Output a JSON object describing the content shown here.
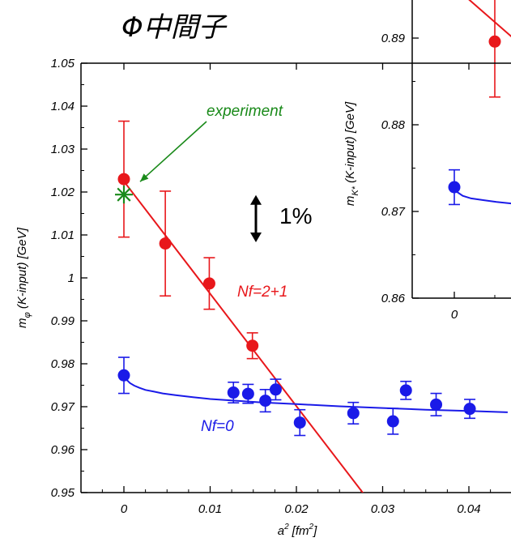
{
  "title": "Φ中間子",
  "chart_data": [
    {
      "type": "scatter",
      "xlabel_base": "a",
      "xlabel_sup": "2",
      "xlabel_unit_prefix": "[fm",
      "xlabel_unit_sup": "2",
      "xlabel_unit_suffix": "]",
      "ylabel_base": "m",
      "ylabel_sub": "φ",
      "ylabel_rest": " (K-input) [GeV]",
      "xlim": [
        -0.0045,
        0.0445
      ],
      "ylim": [
        0.95,
        1.05
      ],
      "x_ticks": [
        {
          "value": 0,
          "label": "0"
        },
        {
          "value": 0.01,
          "label": "0.01"
        },
        {
          "value": 0.02,
          "label": "0.02"
        },
        {
          "value": 0.03,
          "label": "0.03"
        },
        {
          "value": 0.04,
          "label": "0.04"
        }
      ],
      "y_ticks": [
        {
          "value": 0.95,
          "label": "0.95"
        },
        {
          "value": 0.96,
          "label": "0.96"
        },
        {
          "value": 0.97,
          "label": "0.97"
        },
        {
          "value": 0.98,
          "label": "0.98"
        },
        {
          "value": 0.99,
          "label": "0.99"
        },
        {
          "value": 1.0,
          "label": "1"
        },
        {
          "value": 1.01,
          "label": "1.01"
        },
        {
          "value": 1.02,
          "label": "1.02"
        },
        {
          "value": 1.03,
          "label": "1.03"
        },
        {
          "value": 1.04,
          "label": "1.04"
        },
        {
          "value": 1.05,
          "label": "1.05"
        }
      ],
      "series": [
        {
          "name": "Nf=2+1",
          "color": "#e8171b",
          "points": [
            {
              "x": 0,
              "y": 1.023,
              "err": 0.0135
            },
            {
              "x": 0.0048,
              "y": 1.008,
              "err": 0.0122
            },
            {
              "x": 0.0099,
              "y": 0.9987,
              "err": 0.006
            },
            {
              "x": 0.0149,
              "y": 0.9842,
              "err": 0.003
            }
          ],
          "fit": {
            "kind": "linear",
            "x": [
              0,
              0.0278
            ],
            "y": [
              1.0225,
              0.9497
            ]
          }
        },
        {
          "name": "Nf=0",
          "color": "#1a1ae8",
          "points": [
            {
              "x": 0,
              "y": 0.9773,
              "err": 0.0042
            },
            {
              "x": 0.0127,
              "y": 0.9733,
              "err": 0.0024
            },
            {
              "x": 0.0144,
              "y": 0.973,
              "err": 0.0022
            },
            {
              "x": 0.0164,
              "y": 0.9714,
              "err": 0.0026
            },
            {
              "x": 0.0176,
              "y": 0.974,
              "err": 0.0024
            },
            {
              "x": 0.0204,
              "y": 0.9663,
              "err": 0.003
            },
            {
              "x": 0.0266,
              "y": 0.9685,
              "err": 0.0025
            },
            {
              "x": 0.0312,
              "y": 0.9666,
              "err": 0.003
            },
            {
              "x": 0.0327,
              "y": 0.9738,
              "err": 0.0021
            },
            {
              "x": 0.0362,
              "y": 0.9705,
              "err": 0.0026
            },
            {
              "x": 0.0401,
              "y": 0.9695,
              "err": 0.0022
            }
          ],
          "fit": {
            "kind": "curve",
            "x": [
              0,
              0.0003,
              0.0007,
              0.0012,
              0.0018,
              0.0025,
              0.0035,
              0.0045,
              0.006,
              0.008,
              0.01,
              0.013,
              0.016,
              0.02,
              0.025,
              0.03,
              0.035,
              0.04,
              0.0445
            ],
            "y": [
              0.9773,
              0.9763,
              0.9755,
              0.9749,
              0.9744,
              0.9739,
              0.9735,
              0.9731,
              0.9727,
              0.9722,
              0.9718,
              0.9714,
              0.971,
              0.9706,
              0.9701,
              0.9697,
              0.9693,
              0.969,
              0.9687
            ]
          }
        }
      ],
      "experiment": {
        "label": "experiment",
        "x": 0,
        "y": 1.0194,
        "color": "#1a8a1a"
      },
      "scale_indicator": {
        "label": "1%",
        "y_center": 1.0138,
        "half_span": 0.0055
      }
    },
    {
      "type": "scatter",
      "ylabel_base": "m",
      "ylabel_sub": "K*",
      "ylabel_rest": " (K-input) [GeV]",
      "xlim": [
        -0.0045,
        0.0112
      ],
      "ylim": [
        0.86,
        0.8935
      ],
      "x_ticks": [
        {
          "value": 0,
          "label": "0"
        }
      ],
      "y_ticks": [
        {
          "value": 0.86,
          "label": "0.86"
        },
        {
          "value": 0.87,
          "label": "0.87"
        },
        {
          "value": 0.88,
          "label": "0.88"
        },
        {
          "value": 0.89,
          "label": "0.89"
        }
      ],
      "series": [
        {
          "name": "",
          "color": "#e8171b",
          "points": [
            {
              "x": 0.0048,
              "y": 0.8896,
              "err": 0.0064
            }
          ],
          "fit": {
            "kind": "linear",
            "x": [
              0.0005,
              0.0078
            ],
            "y": [
              0.8955,
              0.8893
            ]
          }
        },
        {
          "name": "",
          "color": "#1a1ae8",
          "points": [
            {
              "x": 0,
              "y": 0.8728,
              "err": 0.002
            }
          ],
          "fit": {
            "kind": "curve",
            "x": [
              0,
              0.0004,
              0.001,
              0.002,
              0.0035,
              0.005,
              0.007,
              0.009,
              0.0112
            ],
            "y": [
              0.8728,
              0.8722,
              0.8718,
              0.8715,
              0.8713,
              0.8711,
              0.8709,
              0.8708,
              0.8707
            ]
          }
        }
      ]
    }
  ]
}
